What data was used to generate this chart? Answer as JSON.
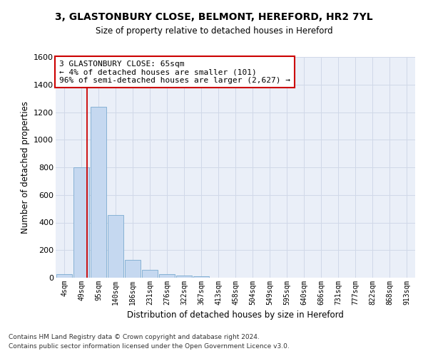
{
  "title1": "3, GLASTONBURY CLOSE, BELMONT, HEREFORD, HR2 7YL",
  "title2": "Size of property relative to detached houses in Hereford",
  "xlabel": "Distribution of detached houses by size in Hereford",
  "ylabel": "Number of detached properties",
  "footer1": "Contains HM Land Registry data © Crown copyright and database right 2024.",
  "footer2": "Contains public sector information licensed under the Open Government Licence v3.0.",
  "annotation_line1": "3 GLASTONBURY CLOSE: 65sqm",
  "annotation_line2": "← 4% of detached houses are smaller (101)",
  "annotation_line3": "96% of semi-detached houses are larger (2,627) →",
  "bar_color": "#c5d8f0",
  "bar_edge_color": "#7aaad0",
  "ref_line_color": "#cc0000",
  "annotation_box_color": "#cc0000",
  "categories": [
    "4sqm",
    "49sqm",
    "95sqm",
    "140sqm",
    "186sqm",
    "231sqm",
    "276sqm",
    "322sqm",
    "367sqm",
    "413sqm",
    "458sqm",
    "504sqm",
    "549sqm",
    "595sqm",
    "640sqm",
    "686sqm",
    "731sqm",
    "777sqm",
    "822sqm",
    "868sqm",
    "913sqm"
  ],
  "bar_values": [
    25,
    800,
    1240,
    455,
    130,
    55,
    25,
    15,
    10,
    0,
    0,
    0,
    0,
    0,
    0,
    0,
    0,
    0,
    0,
    0,
    0
  ],
  "ylim": [
    0,
    1600
  ],
  "yticks": [
    0,
    200,
    400,
    600,
    800,
    1000,
    1200,
    1400,
    1600
  ],
  "grid_color": "#d0d8e8",
  "bg_color": "#eaeff8"
}
